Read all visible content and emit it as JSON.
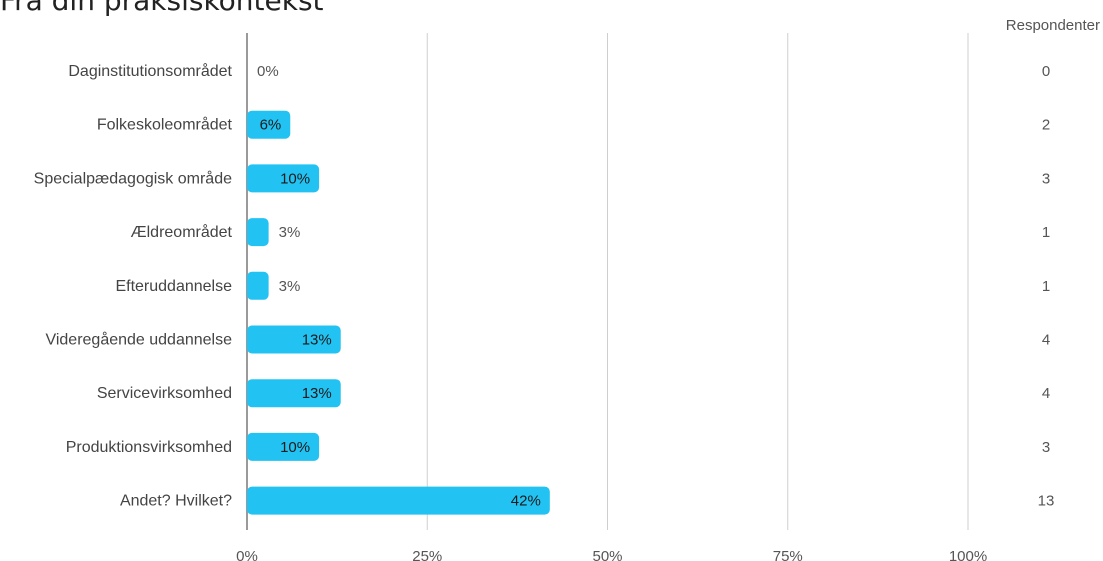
{
  "chart_data": {
    "type": "bar",
    "orientation": "horizontal",
    "title": "Fra din praksiskontekst",
    "right_header": "Respondenter",
    "categories": [
      "Daginstitutionsområdet",
      "Folkeskoleområdet",
      "Specialpædagogisk område",
      "Ældreområdet",
      "Efteruddannelse",
      "Videregående uddannelse",
      "Servicevirksomhed",
      "Produktionsvirksomhed",
      "Andet? Hvilket?"
    ],
    "values": [
      0,
      6,
      10,
      3,
      3,
      13,
      13,
      10,
      42
    ],
    "value_labels": [
      "0%",
      "6%",
      "10%",
      "3%",
      "3%",
      "13%",
      "13%",
      "10%",
      "42%"
    ],
    "respondents": [
      "0",
      "2",
      "3",
      "1",
      "1",
      "4",
      "4",
      "3",
      "13"
    ],
    "x_ticks": [
      0,
      25,
      50,
      75,
      100
    ],
    "x_tick_labels": [
      "0%",
      "25%",
      "50%",
      "75%",
      "100%"
    ],
    "xlim": [
      0,
      100
    ],
    "grid": true,
    "bar_color": "#22c3f3"
  }
}
